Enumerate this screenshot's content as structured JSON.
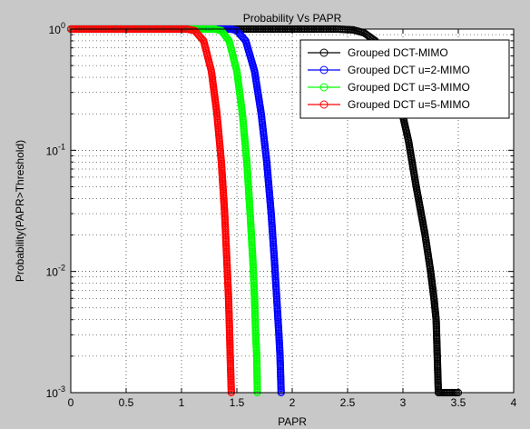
{
  "chart_data": {
    "type": "line",
    "title": "Probability Vs PAPR",
    "xlabel": "PAPR",
    "ylabel": "Probability(PAPR>Threshold)",
    "xlim": [
      0,
      4
    ],
    "ylim": [
      0.001,
      1
    ],
    "yscale": "log",
    "grid": true,
    "legend_position": "top-right",
    "x_ticks": [
      0,
      0.5,
      1,
      1.5,
      2,
      2.5,
      3,
      3.5,
      4
    ],
    "x_tick_labels": [
      "0",
      "0.5",
      "1",
      "1.5",
      "2",
      "2.5",
      "3",
      "3.5",
      "4"
    ],
    "y_ticks": [
      0.001,
      0.01,
      0.1,
      1
    ],
    "y_tick_labels": [
      {
        "base": "10",
        "exp": "-3"
      },
      {
        "base": "10",
        "exp": "-2"
      },
      {
        "base": "10",
        "exp": "-1"
      },
      {
        "base": "10",
        "exp": "0"
      }
    ],
    "series": [
      {
        "name": "Grouped DCT-MIMO",
        "color": "#000000",
        "points": [
          [
            0.0,
            1
          ],
          [
            2.4,
            1
          ],
          [
            2.55,
            0.985
          ],
          [
            2.65,
            0.93
          ],
          [
            2.75,
            0.8
          ],
          [
            2.85,
            0.55
          ],
          [
            2.95,
            0.3
          ],
          [
            3.05,
            0.12
          ],
          [
            3.12,
            0.05
          ],
          [
            3.2,
            0.02
          ],
          [
            3.25,
            0.01
          ],
          [
            3.28,
            0.006
          ],
          [
            3.3,
            0.004
          ],
          [
            3.31,
            0.002
          ],
          [
            3.32,
            0.001
          ],
          [
            3.5,
            0.001
          ]
        ]
      },
      {
        "name": "Grouped DCT u=2-MIMO",
        "color": "#0000ff",
        "points": [
          [
            0.0,
            1
          ],
          [
            1.45,
            1
          ],
          [
            1.5,
            0.97
          ],
          [
            1.58,
            0.8
          ],
          [
            1.66,
            0.45
          ],
          [
            1.72,
            0.2
          ],
          [
            1.77,
            0.08
          ],
          [
            1.81,
            0.03
          ],
          [
            1.84,
            0.012
          ],
          [
            1.86,
            0.006
          ],
          [
            1.88,
            0.003
          ],
          [
            1.89,
            0.002
          ],
          [
            1.9,
            0.001
          ]
        ]
      },
      {
        "name": "Grouped DCT u=3-MIMO",
        "color": "#00ff00",
        "points": [
          [
            0.0,
            1
          ],
          [
            1.3,
            1
          ],
          [
            1.36,
            0.97
          ],
          [
            1.43,
            0.8
          ],
          [
            1.5,
            0.45
          ],
          [
            1.55,
            0.2
          ],
          [
            1.59,
            0.08
          ],
          [
            1.62,
            0.03
          ],
          [
            1.645,
            0.012
          ],
          [
            1.66,
            0.006
          ],
          [
            1.67,
            0.003
          ],
          [
            1.68,
            0.002
          ],
          [
            1.685,
            0.001
          ]
        ]
      },
      {
        "name": "Grouped DCT u=5-MIMO",
        "color": "#ff0000",
        "points": [
          [
            0.0,
            1
          ],
          [
            1.05,
            1
          ],
          [
            1.12,
            0.97
          ],
          [
            1.2,
            0.8
          ],
          [
            1.27,
            0.45
          ],
          [
            1.32,
            0.2
          ],
          [
            1.36,
            0.08
          ],
          [
            1.39,
            0.03
          ],
          [
            1.41,
            0.012
          ],
          [
            1.425,
            0.006
          ],
          [
            1.435,
            0.003
          ],
          [
            1.44,
            0.002
          ],
          [
            1.45,
            0.001
          ]
        ]
      }
    ]
  }
}
